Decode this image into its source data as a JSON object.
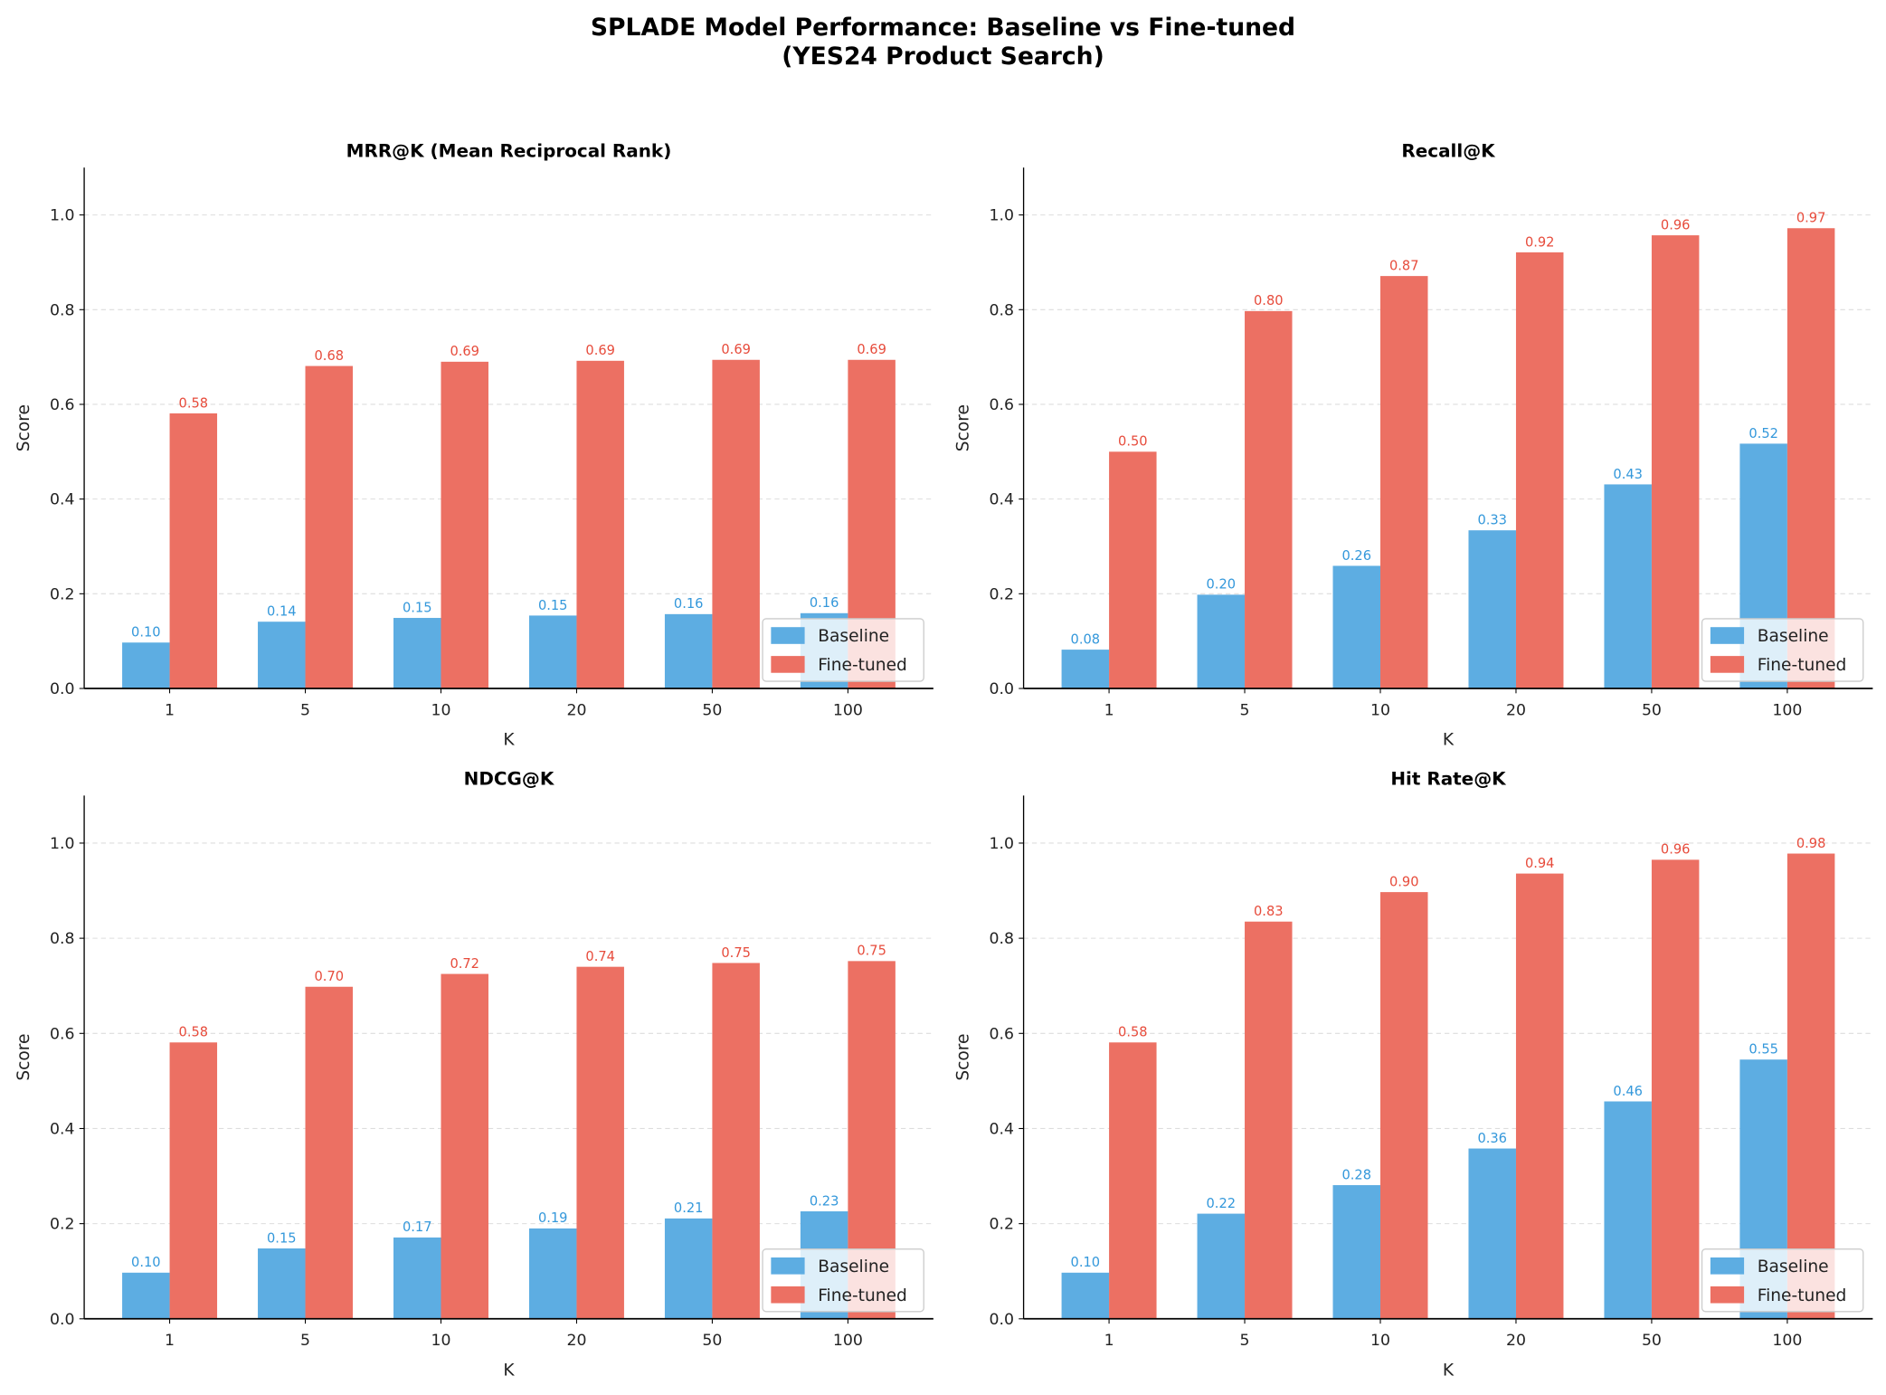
{
  "figure": {
    "title_line1": "SPLADE Model Performance: Baseline vs Fine-tuned",
    "title_line2": "(YES24 Product Search)"
  },
  "colors": {
    "baseline": "#5DADE2",
    "finetuned": "#EC7063",
    "baseline_label": "#3498DB",
    "finetuned_label": "#E74C3C"
  },
  "chart_data": [
    {
      "type": "bar",
      "title": "MRR@K (Mean Reciprocal Rank)",
      "xlabel": "K",
      "ylabel": "Score",
      "ylim": [
        0,
        1.1
      ],
      "yticks": [
        "0.0",
        "0.2",
        "0.4",
        "0.6",
        "0.8",
        "1.0"
      ],
      "grid": "y-dashed",
      "legend": "lower-right",
      "categories": [
        "1",
        "5",
        "10",
        "20",
        "50",
        "100"
      ],
      "series": [
        {
          "name": "Baseline",
          "values": [
            0.097,
            0.141,
            0.149,
            0.154,
            0.157,
            0.159
          ]
        },
        {
          "name": "Fine-tuned",
          "values": [
            0.581,
            0.681,
            0.69,
            0.692,
            0.694,
            0.694
          ]
        }
      ]
    },
    {
      "type": "bar",
      "title": "Recall@K",
      "xlabel": "K",
      "ylabel": "Score",
      "ylim": [
        0,
        1.1
      ],
      "yticks": [
        "0.0",
        "0.2",
        "0.4",
        "0.6",
        "0.8",
        "1.0"
      ],
      "grid": "y-dashed",
      "legend": "lower-right",
      "categories": [
        "1",
        "5",
        "10",
        "20",
        "50",
        "100"
      ],
      "series": [
        {
          "name": "Baseline",
          "values": [
            0.082,
            0.198,
            0.259,
            0.334,
            0.431,
            0.517
          ]
        },
        {
          "name": "Fine-tuned",
          "values": [
            0.5,
            0.797,
            0.871,
            0.921,
            0.957,
            0.972
          ]
        }
      ]
    },
    {
      "type": "bar",
      "title": "NDCG@K",
      "xlabel": "K",
      "ylabel": "Score",
      "ylim": [
        0,
        1.1
      ],
      "yticks": [
        "0.0",
        "0.2",
        "0.4",
        "0.6",
        "0.8",
        "1.0"
      ],
      "grid": "y-dashed",
      "legend": "lower-right",
      "categories": [
        "1",
        "5",
        "10",
        "20",
        "50",
        "100"
      ],
      "series": [
        {
          "name": "Baseline",
          "values": [
            0.097,
            0.148,
            0.171,
            0.19,
            0.211,
            0.226
          ]
        },
        {
          "name": "Fine-tuned",
          "values": [
            0.581,
            0.698,
            0.725,
            0.74,
            0.748,
            0.752
          ]
        }
      ]
    },
    {
      "type": "bar",
      "title": "Hit Rate@K",
      "xlabel": "K",
      "ylabel": "Score",
      "ylim": [
        0,
        1.1
      ],
      "yticks": [
        "0.0",
        "0.2",
        "0.4",
        "0.6",
        "0.8",
        "1.0"
      ],
      "grid": "y-dashed",
      "legend": "lower-right",
      "categories": [
        "1",
        "5",
        "10",
        "20",
        "50",
        "100"
      ],
      "series": [
        {
          "name": "Baseline",
          "values": [
            0.097,
            0.221,
            0.281,
            0.358,
            0.457,
            0.545
          ]
        },
        {
          "name": "Fine-tuned",
          "values": [
            0.581,
            0.835,
            0.897,
            0.936,
            0.965,
            0.978
          ]
        }
      ]
    }
  ]
}
